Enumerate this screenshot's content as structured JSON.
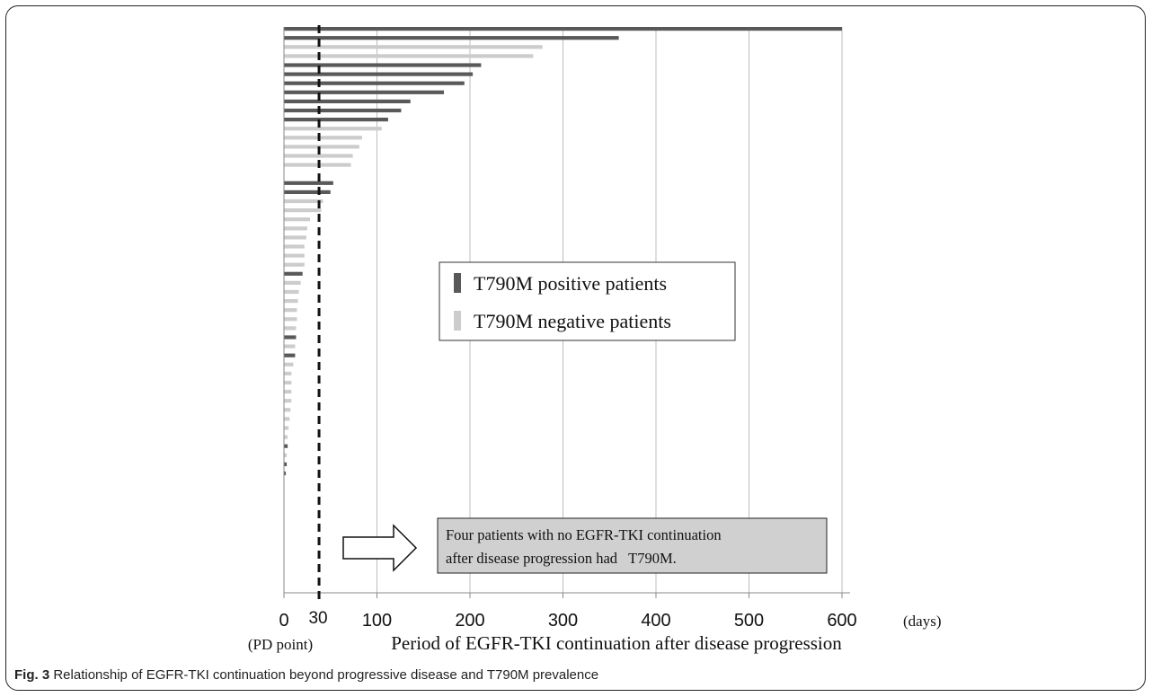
{
  "chart_data": {
    "type": "bar",
    "orientation": "horizontal",
    "x_ticks": [
      0,
      100,
      200,
      300,
      400,
      500,
      600
    ],
    "x_unit": "(days)",
    "x_origin_sublabel": "(PD point)",
    "xlabel": "Period of EGFR-TKI continuation after disease progression",
    "xlim": [
      0,
      600
    ],
    "grid": "vertical",
    "reference_line": {
      "x": 30,
      "label": "30",
      "style": "dashed"
    },
    "legend": {
      "position": "center-right",
      "entries": [
        {
          "label": "T790M positive patients",
          "color": "#595959"
        },
        {
          "label": "T790M negative patients",
          "color": "#cccccc"
        }
      ]
    },
    "annotation": "Four patients with no EGFR-TKI continuation after disease progression had T790M.",
    "annotation_lines": [
      "Four patients with no EGFR-TKI continuation",
      "after disease progression had   T790M."
    ],
    "series_colors": {
      "positive": "#595959",
      "negative": "#cccccc"
    },
    "bars": [
      {
        "value": 600,
        "t790m": "positive"
      },
      {
        "value": 360,
        "t790m": "positive"
      },
      {
        "value": 278,
        "t790m": "negative"
      },
      {
        "value": 268,
        "t790m": "negative"
      },
      {
        "value": 212,
        "t790m": "positive"
      },
      {
        "value": 203,
        "t790m": "positive"
      },
      {
        "value": 194,
        "t790m": "positive"
      },
      {
        "value": 172,
        "t790m": "positive"
      },
      {
        "value": 136,
        "t790m": "positive"
      },
      {
        "value": 126,
        "t790m": "positive"
      },
      {
        "value": 112,
        "t790m": "positive"
      },
      {
        "value": 105,
        "t790m": "negative"
      },
      {
        "value": 84,
        "t790m": "negative"
      },
      {
        "value": 81,
        "t790m": "negative"
      },
      {
        "value": 74,
        "t790m": "negative"
      },
      {
        "value": 72,
        "t790m": "negative"
      },
      {
        "value": 0,
        "t790m": "negative"
      },
      {
        "value": 53,
        "t790m": "positive"
      },
      {
        "value": 50,
        "t790m": "positive"
      },
      {
        "value": 42,
        "t790m": "negative"
      },
      {
        "value": 40,
        "t790m": "negative"
      },
      {
        "value": 28,
        "t790m": "negative"
      },
      {
        "value": 25,
        "t790m": "negative"
      },
      {
        "value": 24,
        "t790m": "negative"
      },
      {
        "value": 22,
        "t790m": "negative"
      },
      {
        "value": 22,
        "t790m": "negative"
      },
      {
        "value": 22,
        "t790m": "negative"
      },
      {
        "value": 20,
        "t790m": "positive"
      },
      {
        "value": 18,
        "t790m": "negative"
      },
      {
        "value": 16,
        "t790m": "negative"
      },
      {
        "value": 15,
        "t790m": "negative"
      },
      {
        "value": 14,
        "t790m": "negative"
      },
      {
        "value": 14,
        "t790m": "negative"
      },
      {
        "value": 13,
        "t790m": "negative"
      },
      {
        "value": 13,
        "t790m": "positive"
      },
      {
        "value": 12,
        "t790m": "negative"
      },
      {
        "value": 12,
        "t790m": "positive"
      },
      {
        "value": 10,
        "t790m": "negative"
      },
      {
        "value": 8,
        "t790m": "negative"
      },
      {
        "value": 8,
        "t790m": "negative"
      },
      {
        "value": 8,
        "t790m": "negative"
      },
      {
        "value": 8,
        "t790m": "negative"
      },
      {
        "value": 7,
        "t790m": "negative"
      },
      {
        "value": 6,
        "t790m": "negative"
      },
      {
        "value": 5,
        "t790m": "negative"
      },
      {
        "value": 4,
        "t790m": "negative"
      },
      {
        "value": 4,
        "t790m": "positive"
      },
      {
        "value": 3,
        "t790m": "negative"
      },
      {
        "value": 3,
        "t790m": "positive"
      },
      {
        "value": 2,
        "t790m": "positive"
      }
    ]
  },
  "caption": {
    "label": "Fig. 3",
    "text": "Relationship of EGFR-TKI continuation beyond progressive disease and T790M prevalence"
  }
}
